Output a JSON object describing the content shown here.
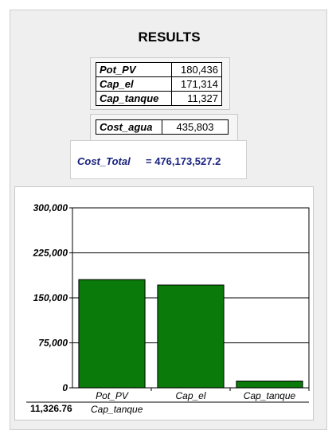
{
  "results": {
    "title": "RESULTS",
    "rows": [
      {
        "label": "Pot_PV",
        "value": "180,436"
      },
      {
        "label": "Cap_el",
        "value": "171,314"
      },
      {
        "label": "Cap_tanque",
        "value": "11,327"
      }
    ],
    "cost_agua": {
      "label": "Cost_agua",
      "value": "435,803"
    },
    "cost_total": {
      "label": "Cost_Total",
      "value": "= 476,173,527.2"
    },
    "footer": {
      "value": "11,326.76",
      "label": "Cap_tanque"
    }
  },
  "chart_data": {
    "type": "bar",
    "categories": [
      "Pot_PV",
      "Cap_el",
      "Cap_tanque"
    ],
    "values": [
      180436,
      171314,
      11327
    ],
    "ylim": [
      0,
      300000
    ],
    "yticks": [
      0,
      75000,
      150000,
      225000,
      300000
    ],
    "ytick_labels": [
      "0",
      "75,000",
      "150,000",
      "225,000",
      "300,000"
    ],
    "bar_color": "#0a7a0a",
    "grid": true,
    "legend": "none"
  }
}
